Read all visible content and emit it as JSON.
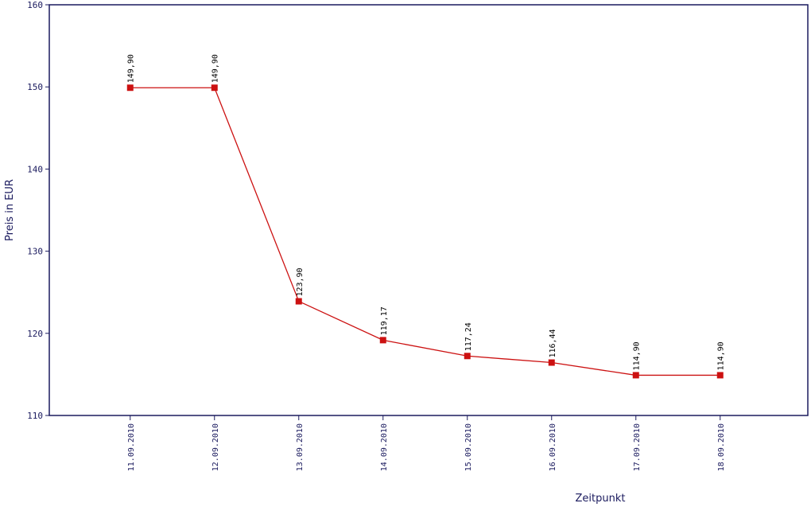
{
  "chart_data": {
    "type": "line",
    "y_label": "Preis in EUR",
    "x_label": "Zeitpunkt",
    "categories": [
      "11.09.2010",
      "12.09.2010",
      "13.09.2010",
      "14.09.2010",
      "15.09.2010",
      "16.09.2010",
      "17.09.2010",
      "18.09.2010"
    ],
    "series": [
      {
        "name": "Preis",
        "color": "#cc1111",
        "values": [
          149.9,
          149.9,
          123.9,
          119.17,
          117.24,
          116.44,
          114.9,
          114.9
        ],
        "value_labels": [
          "149,90",
          "149,90",
          "123,90",
          "119,17",
          "117,24",
          "116,44",
          "114,90",
          "114,90"
        ]
      }
    ],
    "ylim": [
      110,
      160
    ],
    "yticks": [
      110,
      120,
      130,
      140,
      150,
      160
    ]
  }
}
